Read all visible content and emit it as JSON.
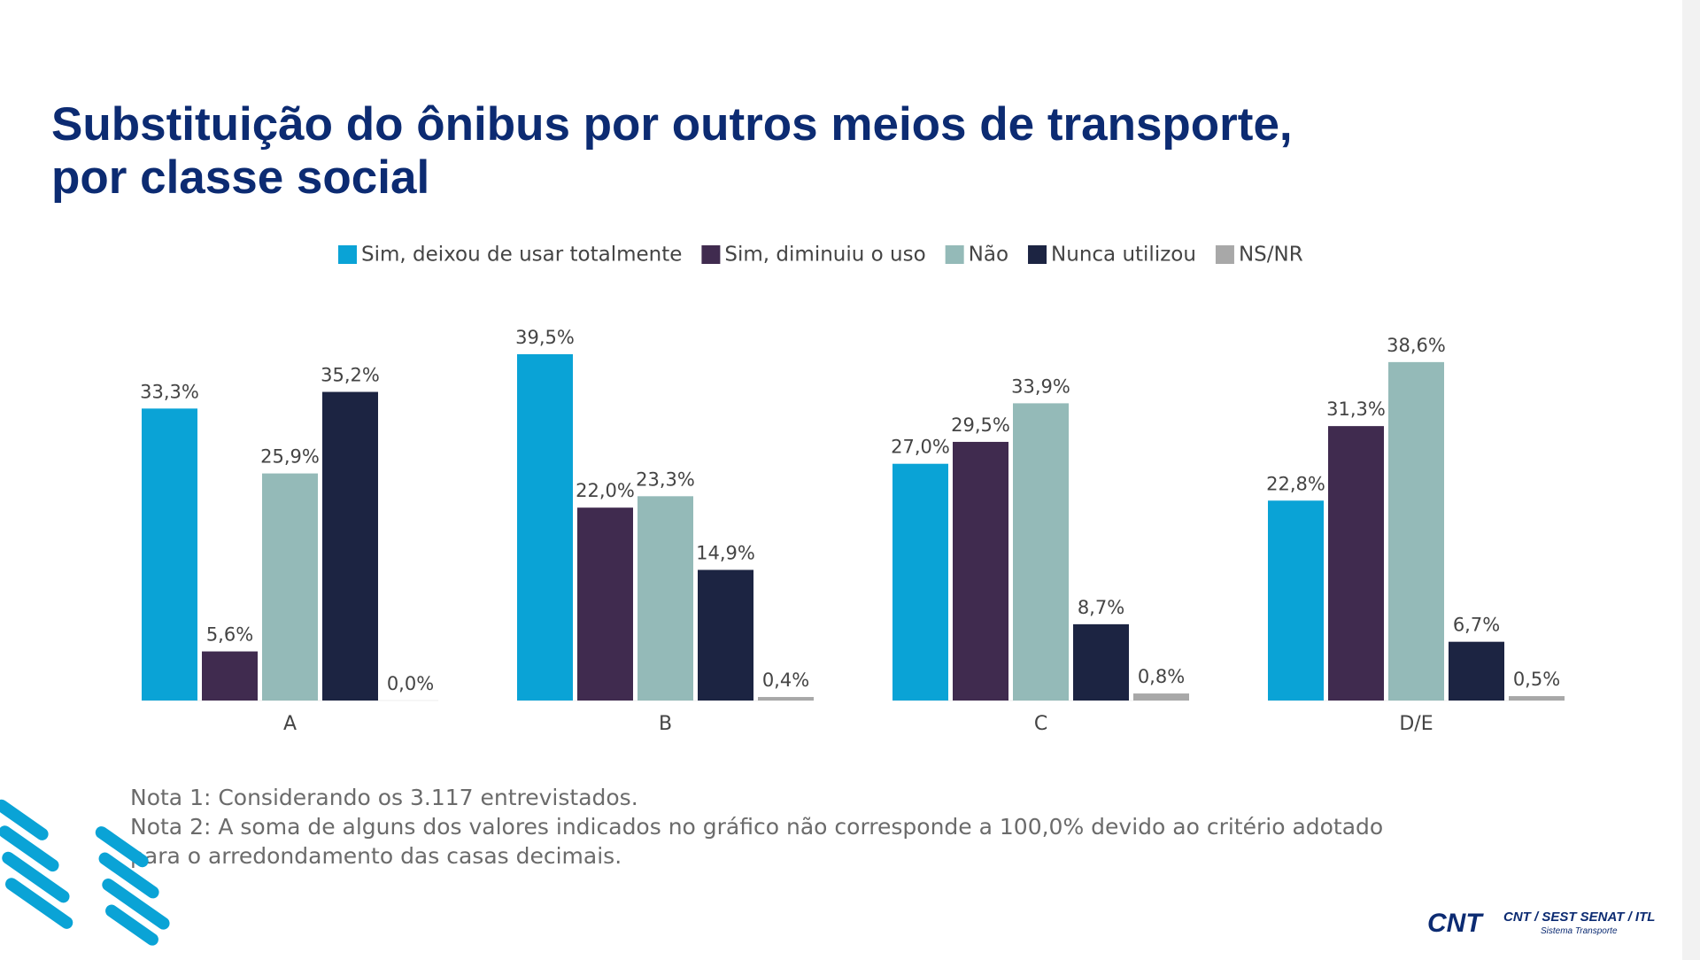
{
  "title_lines": [
    "Substituição do ônibus por outros meios de transporte,",
    "por classe social"
  ],
  "chart_data": {
    "type": "bar",
    "categories": [
      "A",
      "B",
      "C",
      "D/E"
    ],
    "series": [
      {
        "name": "Sim, deixou de usar totalmente",
        "color": "#0aa3d6",
        "values": [
          33.3,
          39.5,
          27.0,
          22.8
        ],
        "value_labels": [
          "33,3%",
          "39,5%",
          "27,0%",
          "22,8%"
        ]
      },
      {
        "name": "Sim, diminuiu o uso",
        "color": "#402b4f",
        "values": [
          5.6,
          22.0,
          29.5,
          31.3
        ],
        "value_labels": [
          "5,6%",
          "22,0%",
          "29,5%",
          "31,3%"
        ]
      },
      {
        "name": "Não",
        "color": "#94bab8",
        "values": [
          25.9,
          23.3,
          33.9,
          38.6
        ],
        "value_labels": [
          "25,9%",
          "23,3%",
          "33,9%",
          "38,6%"
        ]
      },
      {
        "name": "Nunca utilizou",
        "color": "#1c2442",
        "values": [
          35.2,
          14.9,
          8.7,
          6.7
        ],
        "value_labels": [
          "35,2%",
          "14,9%",
          "8,7%",
          "6,7%"
        ]
      },
      {
        "name": "NS/NR",
        "color": "#a8a8a8",
        "values": [
          0.0,
          0.4,
          0.8,
          0.5
        ],
        "value_labels": [
          "0,0%",
          "0,4%",
          "0,8%",
          "0,5%"
        ]
      }
    ]
  },
  "notes": [
    "Nota 1: Considerando os 3.117 entrevistados.",
    "Nota 2: A soma de alguns dos valores indicados no gráfico não corresponde a 100,0% devido ao critério adotado",
    "para o arredondamento das casas decimais."
  ],
  "logo": {
    "main": "CNT",
    "secondary": "CNT / SEST SENAT / ITL",
    "tagline": "Sistema Transporte"
  }
}
